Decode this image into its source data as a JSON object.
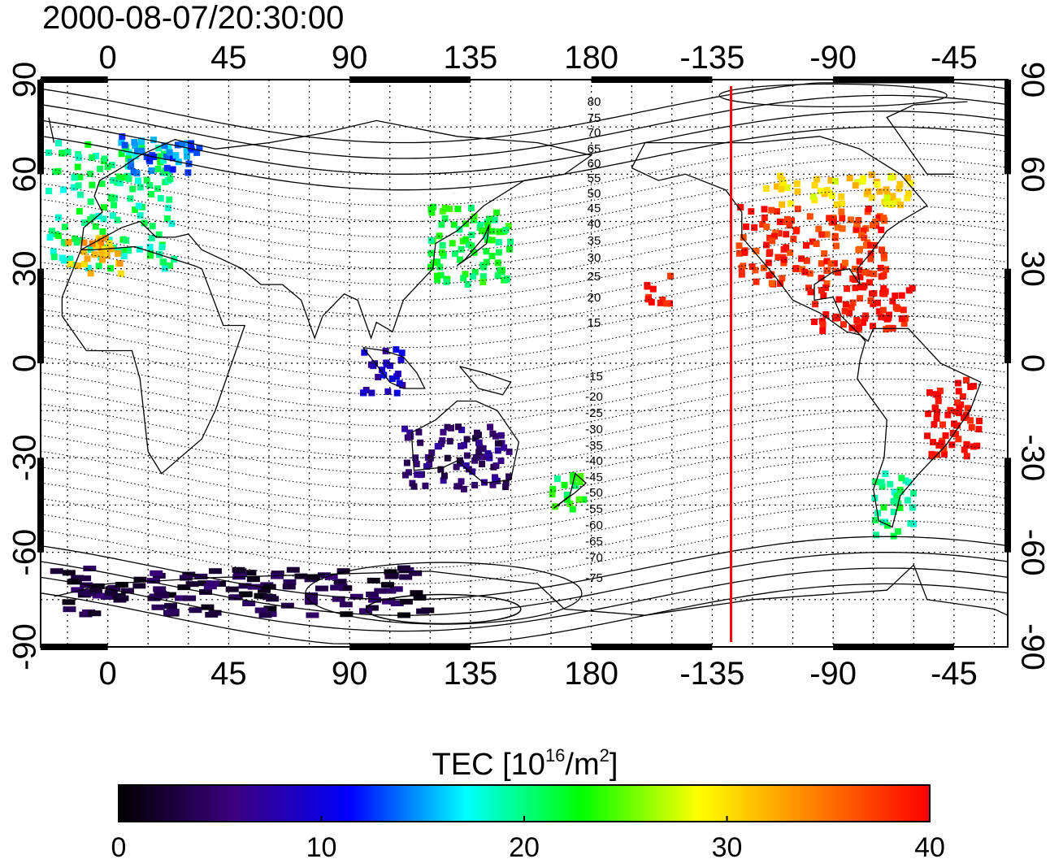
{
  "title": "2000-08-07/20:30:00",
  "map": {
    "lon_ticks_top": [
      "0",
      "45",
      "90",
      "135",
      "180",
      "-135",
      "-90",
      "-45"
    ],
    "lon_ticks_bottom": [
      "0",
      "45",
      "90",
      "135",
      "180",
      "-135",
      "-90",
      "-45"
    ],
    "lat_ticks_left": [
      "90",
      "60",
      "30",
      "0",
      "-30",
      "-60",
      "-90"
    ],
    "lat_ticks_right": [
      "90",
      "60",
      "30",
      "0",
      "-30",
      "-60",
      "-90"
    ],
    "contour_labels_north": [
      "80",
      "75",
      "70",
      "65",
      "60",
      "55",
      "50",
      "45",
      "40",
      "35",
      "30",
      "25",
      "20",
      "15"
    ],
    "contour_labels_south": [
      "-15",
      "-20",
      "-25",
      "-30",
      "-35",
      "-40",
      "-45",
      "-50",
      "-55",
      "-60",
      "-65",
      "-70",
      "-75"
    ],
    "lon_range": [
      -25,
      335
    ],
    "lat_range": [
      -90,
      90
    ],
    "meridian_line": {
      "lon": -128,
      "color": "#ff0000"
    },
    "grid": "dotted, every 15 degrees"
  },
  "colorbar": {
    "label_main": "TEC  [10",
    "label_sup1": "16",
    "label_mid": "/m",
    "label_sup2": "2",
    "label_end": "]",
    "ticks": [
      "0",
      "10",
      "20",
      "30",
      "40"
    ],
    "range": [
      0,
      40
    ],
    "colors": [
      "#000000",
      "#3c0080",
      "#0000ff",
      "#00ffff",
      "#00ff00",
      "#ffff00",
      "#ff8000",
      "#ff0000"
    ]
  },
  "chart_data": {
    "type": "heatmap",
    "title": "2000-08-07/20:30:00",
    "xlabel": "",
    "ylabel": "",
    "xlim": [
      -25,
      335
    ],
    "ylim": [
      -90,
      90
    ],
    "value_label": "TEC [10^16/m^2]",
    "value_range": [
      0,
      40
    ],
    "regions": [
      {
        "lon": [
          -22,
          25
        ],
        "lat": [
          30,
          70
        ],
        "tec": 20
      },
      {
        "lon": [
          5,
          35
        ],
        "lat": [
          60,
          72
        ],
        "tec": 14
      },
      {
        "lon": [
          -15,
          5
        ],
        "lat": [
          28,
          40
        ],
        "tec": 32
      },
      {
        "lon": [
          120,
          150
        ],
        "lat": [
          25,
          50
        ],
        "tec": 22
      },
      {
        "lon": [
          95,
          110
        ],
        "lat": [
          -10,
          5
        ],
        "tec": 9
      },
      {
        "lon": [
          110,
          150
        ],
        "lat": [
          -40,
          -20
        ],
        "tec": 5
      },
      {
        "lon": [
          -125,
          -70
        ],
        "lat": [
          25,
          50
        ],
        "tec": 38
      },
      {
        "lon": [
          -115,
          -60
        ],
        "lat": [
          50,
          60
        ],
        "tec": 30
      },
      {
        "lon": [
          -100,
          -60
        ],
        "lat": [
          10,
          25
        ],
        "tec": 40
      },
      {
        "lon": [
          -160,
          -150
        ],
        "lat": [
          18,
          28
        ],
        "tec": 40
      },
      {
        "lon": [
          -55,
          -35
        ],
        "lat": [
          -30,
          -5
        ],
        "tec": 40
      },
      {
        "lon": [
          -75,
          -60
        ],
        "lat": [
          -55,
          -35
        ],
        "tec": 20
      },
      {
        "lon": [
          165,
          178
        ],
        "lat": [
          -47,
          -35
        ],
        "tec": 22
      },
      {
        "lon": [
          -20,
          120
        ],
        "lat": [
          -80,
          -65
        ],
        "tec": 3
      }
    ]
  }
}
